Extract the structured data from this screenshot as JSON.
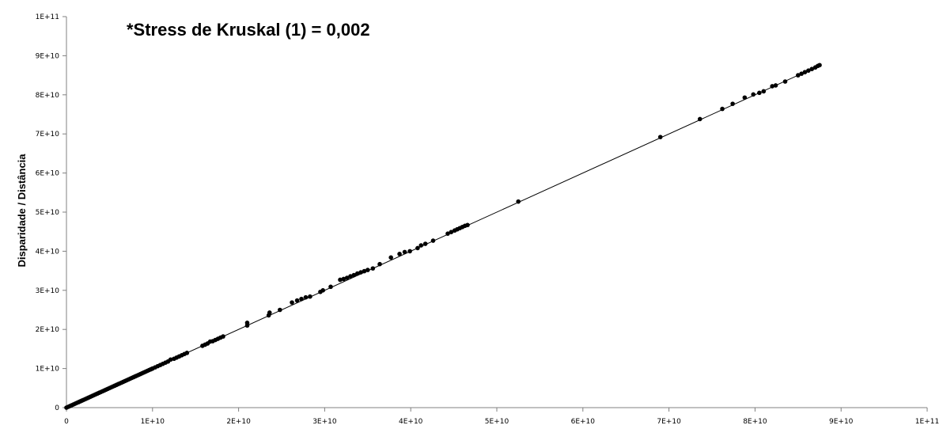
{
  "chart_data": {
    "type": "scatter",
    "title": "*Stress de Kruskal (1) = 0,002",
    "xlabel": "",
    "ylabel": "Disparidade / Distância",
    "xlim": [
      0,
      100000000000
    ],
    "ylim": [
      0,
      100000000000
    ],
    "x_tick_values": [
      0,
      10000000000,
      20000000000,
      30000000000,
      40000000000,
      50000000000,
      60000000000,
      70000000000,
      80000000000,
      90000000000,
      100000000000
    ],
    "x_tick_labels": [
      "0",
      "1E+10",
      "2E+10",
      "3E+10",
      "4E+10",
      "5E+10",
      "6E+10",
      "7E+10",
      "8E+10",
      "9E+10",
      "1E+11"
    ],
    "y_tick_values": [
      0,
      10000000000,
      20000000000,
      30000000000,
      40000000000,
      50000000000,
      60000000000,
      70000000000,
      80000000000,
      90000000000,
      100000000000
    ],
    "y_tick_labels": [
      "0",
      "1E+10",
      "2E+10",
      "3E+10",
      "4E+10",
      "5E+10",
      "6E+10",
      "7E+10",
      "8E+10",
      "9E+10",
      "1E+11"
    ],
    "grid": false,
    "legend": "none",
    "trendline": {
      "from": [
        0,
        0
      ],
      "to": [
        87500000000,
        87500000000
      ]
    },
    "point_color": "#000000",
    "series": [
      {
        "points": [
          [
            0,
            0
          ],
          [
            200000000,
            200000000
          ],
          [
            400000000,
            400000000
          ],
          [
            600000000,
            600000000
          ],
          [
            800000000,
            800000000
          ],
          [
            1000000000,
            1000000000
          ],
          [
            1200000000,
            1200000000
          ],
          [
            1400000000,
            1400000000
          ],
          [
            1600000000,
            1600000000
          ],
          [
            1800000000,
            1800000000
          ],
          [
            2000000000,
            2000000000
          ],
          [
            2200000000,
            2200000000
          ],
          [
            2400000000,
            2400000000
          ],
          [
            2600000000,
            2600000000
          ],
          [
            2800000000,
            2800000000
          ],
          [
            3000000000,
            3000000000
          ],
          [
            3200000000,
            3200000000
          ],
          [
            3400000000,
            3400000000
          ],
          [
            3600000000,
            3600000000
          ],
          [
            3800000000,
            3800000000
          ],
          [
            4000000000,
            4000000000
          ],
          [
            4200000000,
            4200000000
          ],
          [
            4400000000,
            4400000000
          ],
          [
            4600000000,
            4600000000
          ],
          [
            4800000000,
            4800000000
          ],
          [
            5000000000,
            5000000000
          ],
          [
            5200000000,
            5200000000
          ],
          [
            5400000000,
            5400000000
          ],
          [
            5600000000,
            5600000000
          ],
          [
            5800000000,
            5800000000
          ],
          [
            6000000000,
            6000000000
          ],
          [
            6200000000,
            6200000000
          ],
          [
            6400000000,
            6400000000
          ],
          [
            6600000000,
            6600000000
          ],
          [
            6800000000,
            6800000000
          ],
          [
            7000000000,
            7000000000
          ],
          [
            7200000000,
            7200000000
          ],
          [
            7400000000,
            7400000000
          ],
          [
            7600000000,
            7600000000
          ],
          [
            7800000000,
            7800000000
          ],
          [
            8000000000,
            8000000000
          ],
          [
            8200000000,
            8200000000
          ],
          [
            8400000000,
            8400000000
          ],
          [
            8600000000,
            8600000000
          ],
          [
            8800000000,
            8800000000
          ],
          [
            9000000000,
            9000000000
          ],
          [
            9200000000,
            9200000000
          ],
          [
            9400000000,
            9400000000
          ],
          [
            9600000000,
            9600000000
          ],
          [
            9800000000,
            9800000000
          ],
          [
            10000000000,
            10000000000
          ],
          [
            10300000000,
            10300000000
          ],
          [
            10600000000,
            10600000000
          ],
          [
            10900000000,
            10900000000
          ],
          [
            11200000000,
            11200000000
          ],
          [
            11500000000,
            11500000000
          ],
          [
            11800000000,
            11800000000
          ],
          [
            12100000000,
            12300000000
          ],
          [
            12500000000,
            12500000000
          ],
          [
            12800000000,
            12800000000
          ],
          [
            13100000000,
            13100000000
          ],
          [
            13400000000,
            13400000000
          ],
          [
            13700000000,
            13700000000
          ],
          [
            14000000000,
            14000000000
          ],
          [
            15800000000,
            15800000000
          ],
          [
            16100000000,
            16100000000
          ],
          [
            16400000000,
            16400000000
          ],
          [
            16700000000,
            16900000000
          ],
          [
            17000000000,
            17000000000
          ],
          [
            17300000000,
            17300000000
          ],
          [
            17600000000,
            17600000000
          ],
          [
            17900000000,
            17900000000
          ],
          [
            18200000000,
            18200000000
          ],
          [
            21000000000,
            21000000000
          ],
          [
            21000000000,
            21700000000
          ],
          [
            23500000000,
            23600000000
          ],
          [
            23600000000,
            24300000000
          ],
          [
            24800000000,
            25000000000
          ],
          [
            26200000000,
            26900000000
          ],
          [
            26800000000,
            27400000000
          ],
          [
            27300000000,
            27800000000
          ],
          [
            27800000000,
            28200000000
          ],
          [
            28300000000,
            28400000000
          ],
          [
            29500000000,
            29600000000
          ],
          [
            29800000000,
            30000000000
          ],
          [
            30700000000,
            30900000000
          ],
          [
            31800000000,
            32700000000
          ],
          [
            32200000000,
            32900000000
          ],
          [
            32600000000,
            33200000000
          ],
          [
            33000000000,
            33600000000
          ],
          [
            33400000000,
            33900000000
          ],
          [
            33800000000,
            34300000000
          ],
          [
            34200000000,
            34600000000
          ],
          [
            34600000000,
            34900000000
          ],
          [
            35000000000,
            35200000000
          ],
          [
            35600000000,
            35600000000
          ],
          [
            36400000000,
            36700000000
          ],
          [
            37700000000,
            38400000000
          ],
          [
            38700000000,
            39300000000
          ],
          [
            39300000000,
            39800000000
          ],
          [
            39900000000,
            40000000000
          ],
          [
            40800000000,
            40800000000
          ],
          [
            41200000000,
            41500000000
          ],
          [
            41700000000,
            41900000000
          ],
          [
            42600000000,
            42700000000
          ],
          [
            44300000000,
            44500000000
          ],
          [
            44700000000,
            44900000000
          ],
          [
            45100000000,
            45300000000
          ],
          [
            45400000000,
            45600000000
          ],
          [
            45700000000,
            45900000000
          ],
          [
            46000000000,
            46200000000
          ],
          [
            46300000000,
            46500000000
          ],
          [
            46600000000,
            46700000000
          ],
          [
            52500000000,
            52700000000
          ],
          [
            69000000000,
            69200000000
          ],
          [
            73600000000,
            73800000000
          ],
          [
            76200000000,
            76400000000
          ],
          [
            77400000000,
            77700000000
          ],
          [
            78800000000,
            79300000000
          ],
          [
            79800000000,
            80100000000
          ],
          [
            80500000000,
            80500000000
          ],
          [
            81000000000,
            80900000000
          ],
          [
            82000000000,
            82200000000
          ],
          [
            82400000000,
            82400000000
          ],
          [
            83500000000,
            83400000000
          ],
          [
            85000000000,
            85000000000
          ],
          [
            85400000000,
            85400000000
          ],
          [
            85800000000,
            85800000000
          ],
          [
            86200000000,
            86200000000
          ],
          [
            86600000000,
            86600000000
          ],
          [
            87000000000,
            87000000000
          ],
          [
            87300000000,
            87400000000
          ],
          [
            87500000000,
            87600000000
          ]
        ]
      }
    ]
  }
}
